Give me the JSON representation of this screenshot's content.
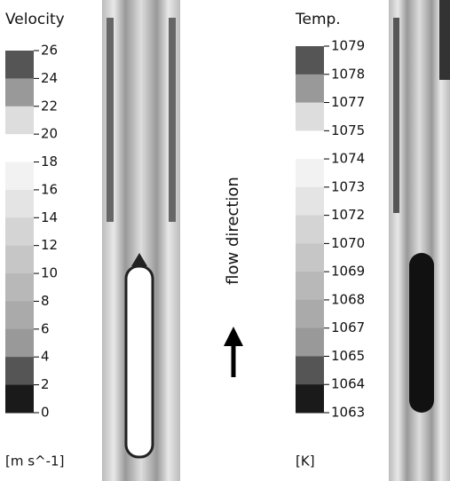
{
  "left": {
    "title": "Velocity",
    "ticks": [
      26,
      24,
      22,
      20,
      18,
      16,
      14,
      12,
      10,
      8,
      6,
      4,
      2,
      0
    ],
    "unit": "[m s^-1]"
  },
  "middle": {
    "label": "flow direction"
  },
  "right": {
    "title": "Temp.",
    "ticks": [
      1079,
      1078,
      1077,
      1075,
      1074,
      1073,
      1072,
      1070,
      1069,
      1068,
      1067,
      1065,
      1064,
      1063
    ],
    "unit": "[K]"
  }
}
